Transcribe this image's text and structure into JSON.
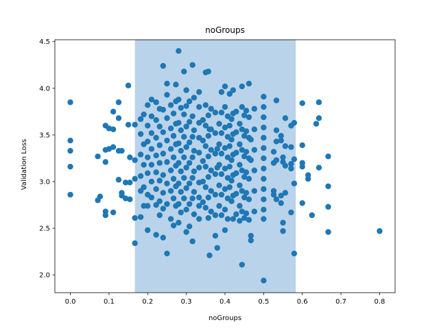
{
  "chart_data": {
    "type": "scatter",
    "title": "noGroups",
    "xlabel": "noGroups",
    "ylabel": "Validation Loss",
    "xlim": [
      -0.04,
      0.84
    ],
    "ylim": [
      1.81,
      4.52
    ],
    "xticks": [
      0.0,
      0.1,
      0.2,
      0.3,
      0.4,
      0.5,
      0.6,
      0.7,
      0.8
    ],
    "xtick_labels": [
      "0.0",
      "0.1",
      "0.2",
      "0.3",
      "0.4",
      "0.5",
      "0.6",
      "0.7",
      "0.8"
    ],
    "yticks": [
      2.0,
      2.5,
      3.0,
      3.5,
      4.0,
      4.5
    ],
    "ytick_labels": [
      "2.0",
      "2.5",
      "3.0",
      "3.5",
      "4.0",
      "4.5"
    ],
    "grid": false,
    "highlight_band": {
      "x_start": 0.167,
      "x_end": 0.583,
      "color": "#b9d3ea"
    },
    "marker_color": "#1f77b4",
    "points": [
      [
        0.0,
        3.85
      ],
      [
        0.0,
        3.44
      ],
      [
        0.0,
        3.33
      ],
      [
        0.0,
        3.16
      ],
      [
        0.0,
        2.86
      ],
      [
        0.071,
        3.27
      ],
      [
        0.071,
        2.8
      ],
      [
        0.077,
        2.84
      ],
      [
        0.091,
        3.6
      ],
      [
        0.091,
        3.34
      ],
      [
        0.091,
        3.21
      ],
      [
        0.091,
        2.68
      ],
      [
        0.091,
        2.64
      ],
      [
        0.1,
        3.57
      ],
      [
        0.1,
        3.35
      ],
      [
        0.111,
        3.75
      ],
      [
        0.111,
        3.56
      ],
      [
        0.111,
        3.37
      ],
      [
        0.111,
        2.67
      ],
      [
        0.125,
        3.85
      ],
      [
        0.125,
        3.68
      ],
      [
        0.125,
        3.33
      ],
      [
        0.125,
        3.02
      ],
      [
        0.133,
        3.33
      ],
      [
        0.133,
        2.88
      ],
      [
        0.133,
        2.85
      ],
      [
        0.143,
        2.99
      ],
      [
        0.143,
        2.82
      ],
      [
        0.15,
        4.03
      ],
      [
        0.15,
        3.61
      ],
      [
        0.154,
        3.26
      ],
      [
        0.154,
        2.99
      ],
      [
        0.154,
        2.81
      ],
      [
        0.167,
        3.61
      ],
      [
        0.167,
        3.23
      ],
      [
        0.167,
        3.03
      ],
      [
        0.167,
        2.61
      ],
      [
        0.167,
        2.34
      ],
      [
        0.182,
        3.67
      ],
      [
        0.182,
        3.51
      ],
      [
        0.182,
        3.29
      ],
      [
        0.182,
        3.06
      ],
      [
        0.182,
        2.9
      ],
      [
        0.182,
        2.62
      ],
      [
        0.19,
        3.72
      ],
      [
        0.19,
        3.4
      ],
      [
        0.19,
        3.18
      ],
      [
        0.19,
        2.94
      ],
      [
        0.19,
        2.74
      ],
      [
        0.2,
        3.82
      ],
      [
        0.2,
        3.6
      ],
      [
        0.2,
        3.43
      ],
      [
        0.2,
        3.26
      ],
      [
        0.2,
        3.09
      ],
      [
        0.2,
        2.86
      ],
      [
        0.2,
        2.74
      ],
      [
        0.2,
        2.48
      ],
      [
        0.21,
        3.88
      ],
      [
        0.21,
        3.7
      ],
      [
        0.21,
        3.52
      ],
      [
        0.21,
        3.35
      ],
      [
        0.21,
        3.18
      ],
      [
        0.21,
        3.0
      ],
      [
        0.21,
        2.83
      ],
      [
        0.222,
        3.85
      ],
      [
        0.222,
        3.66
      ],
      [
        0.222,
        3.47
      ],
      [
        0.222,
        3.28
      ],
      [
        0.222,
        3.1
      ],
      [
        0.222,
        2.92
      ],
      [
        0.222,
        2.75
      ],
      [
        0.222,
        2.43
      ],
      [
        0.231,
        3.78
      ],
      [
        0.231,
        3.59
      ],
      [
        0.231,
        3.39
      ],
      [
        0.231,
        3.2
      ],
      [
        0.231,
        3.01
      ],
      [
        0.231,
        2.79
      ],
      [
        0.231,
        2.64
      ],
      [
        0.24,
        4.24
      ],
      [
        0.24,
        3.77
      ],
      [
        0.24,
        3.53
      ],
      [
        0.24,
        3.3
      ],
      [
        0.24,
        3.07
      ],
      [
        0.24,
        2.88
      ],
      [
        0.24,
        2.71
      ],
      [
        0.24,
        2.4
      ],
      [
        0.25,
        4.05
      ],
      [
        0.25,
        3.93
      ],
      [
        0.25,
        3.68
      ],
      [
        0.25,
        3.44
      ],
      [
        0.25,
        3.21
      ],
      [
        0.25,
        2.98
      ],
      [
        0.25,
        2.76
      ],
      [
        0.25,
        2.23
      ],
      [
        0.26,
        3.82
      ],
      [
        0.26,
        3.57
      ],
      [
        0.26,
        3.35
      ],
      [
        0.26,
        3.12
      ],
      [
        0.26,
        2.9
      ],
      [
        0.26,
        2.6
      ],
      [
        0.267,
        3.73
      ],
      [
        0.267,
        3.49
      ],
      [
        0.267,
        3.26
      ],
      [
        0.267,
        3.03
      ],
      [
        0.267,
        2.82
      ],
      [
        0.267,
        2.53
      ],
      [
        0.273,
        4.04
      ],
      [
        0.273,
        3.86
      ],
      [
        0.273,
        3.62
      ],
      [
        0.273,
        3.4
      ],
      [
        0.273,
        3.17
      ],
      [
        0.273,
        2.95
      ],
      [
        0.273,
        2.74
      ],
      [
        0.28,
        4.4
      ],
      [
        0.28,
        3.88
      ],
      [
        0.28,
        3.63
      ],
      [
        0.28,
        3.41
      ],
      [
        0.28,
        3.2
      ],
      [
        0.28,
        2.98
      ],
      [
        0.28,
        2.76
      ],
      [
        0.28,
        2.56
      ],
      [
        0.286,
        3.79
      ],
      [
        0.286,
        3.55
      ],
      [
        0.286,
        3.33
      ],
      [
        0.286,
        3.11
      ],
      [
        0.286,
        2.89
      ],
      [
        0.286,
        2.67
      ],
      [
        0.294,
        4.18
      ],
      [
        0.294,
        3.72
      ],
      [
        0.294,
        3.48
      ],
      [
        0.294,
        3.26
      ],
      [
        0.294,
        3.04
      ],
      [
        0.294,
        2.82
      ],
      [
        0.3,
        3.98
      ],
      [
        0.3,
        3.81
      ],
      [
        0.3,
        3.59
      ],
      [
        0.3,
        3.37
      ],
      [
        0.3,
        3.15
      ],
      [
        0.3,
        2.93
      ],
      [
        0.3,
        2.7
      ],
      [
        0.3,
        2.46
      ],
      [
        0.308,
        3.86
      ],
      [
        0.308,
        3.64
      ],
      [
        0.308,
        3.42
      ],
      [
        0.308,
        3.2
      ],
      [
        0.308,
        2.98
      ],
      [
        0.308,
        2.76
      ],
      [
        0.308,
        2.52
      ],
      [
        0.316,
        4.25
      ],
      [
        0.316,
        3.7
      ],
      [
        0.316,
        3.48
      ],
      [
        0.316,
        3.26
      ],
      [
        0.316,
        3.04
      ],
      [
        0.316,
        2.82
      ],
      [
        0.316,
        2.36
      ],
      [
        0.32,
        3.9
      ],
      [
        0.32,
        3.55
      ],
      [
        0.32,
        3.33
      ],
      [
        0.32,
        3.11
      ],
      [
        0.32,
        2.89
      ],
      [
        0.32,
        2.65
      ],
      [
        0.333,
        3.96
      ],
      [
        0.333,
        3.8
      ],
      [
        0.333,
        3.63
      ],
      [
        0.333,
        3.47
      ],
      [
        0.333,
        3.31
      ],
      [
        0.333,
        3.15
      ],
      [
        0.333,
        2.99
      ],
      [
        0.333,
        2.83
      ],
      [
        0.333,
        2.74
      ],
      [
        0.333,
        2.6
      ],
      [
        0.343,
        3.66
      ],
      [
        0.343,
        3.44
      ],
      [
        0.343,
        3.22
      ],
      [
        0.343,
        3.0
      ],
      [
        0.343,
        2.78
      ],
      [
        0.35,
        4.17
      ],
      [
        0.35,
        3.82
      ],
      [
        0.35,
        3.6
      ],
      [
        0.35,
        3.38
      ],
      [
        0.35,
        3.16
      ],
      [
        0.35,
        2.94
      ],
      [
        0.35,
        2.72
      ],
      [
        0.357,
        4.18
      ],
      [
        0.357,
        3.71
      ],
      [
        0.357,
        3.49
      ],
      [
        0.357,
        3.27
      ],
      [
        0.357,
        3.05
      ],
      [
        0.357,
        2.83
      ],
      [
        0.357,
        2.61
      ],
      [
        0.36,
        3.56
      ],
      [
        0.36,
        2.21
      ],
      [
        0.364,
        3.78
      ],
      [
        0.364,
        3.56
      ],
      [
        0.364,
        3.34
      ],
      [
        0.364,
        3.12
      ],
      [
        0.364,
        2.9
      ],
      [
        0.364,
        2.68
      ],
      [
        0.375,
        3.74
      ],
      [
        0.375,
        3.52
      ],
      [
        0.375,
        3.3
      ],
      [
        0.375,
        3.08
      ],
      [
        0.375,
        2.86
      ],
      [
        0.375,
        2.64
      ],
      [
        0.375,
        2.42
      ],
      [
        0.38,
        3.35
      ],
      [
        0.38,
        3.15
      ],
      [
        0.38,
        2.29
      ],
      [
        0.385,
        3.62
      ],
      [
        0.385,
        3.4
      ],
      [
        0.385,
        3.18
      ],
      [
        0.385,
        2.96
      ],
      [
        0.385,
        2.74
      ],
      [
        0.391,
        3.96
      ],
      [
        0.391,
        3.74
      ],
      [
        0.391,
        3.52
      ],
      [
        0.391,
        3.3
      ],
      [
        0.391,
        3.08
      ],
      [
        0.391,
        2.86
      ],
      [
        0.391,
        2.64
      ],
      [
        0.4,
        4.02
      ],
      [
        0.4,
        3.8
      ],
      [
        0.4,
        3.58
      ],
      [
        0.4,
        3.36
      ],
      [
        0.4,
        3.14
      ],
      [
        0.4,
        2.92
      ],
      [
        0.4,
        2.7
      ],
      [
        0.4,
        2.48
      ],
      [
        0.407,
        3.7
      ],
      [
        0.407,
        3.48
      ],
      [
        0.407,
        3.26
      ],
      [
        0.407,
        3.04
      ],
      [
        0.407,
        2.82
      ],
      [
        0.407,
        2.6
      ],
      [
        0.412,
        3.94
      ],
      [
        0.412,
        3.6
      ],
      [
        0.412,
        3.38
      ],
      [
        0.412,
        3.16
      ],
      [
        0.412,
        2.94
      ],
      [
        0.417,
        3.67
      ],
      [
        0.417,
        3.45
      ],
      [
        0.417,
        3.23
      ],
      [
        0.417,
        3.01
      ],
      [
        0.417,
        2.79
      ],
      [
        0.421,
        3.98
      ],
      [
        0.421,
        3.73
      ],
      [
        0.421,
        3.51
      ],
      [
        0.421,
        3.29
      ],
      [
        0.421,
        3.07
      ],
      [
        0.421,
        2.85
      ],
      [
        0.421,
        2.6
      ],
      [
        0.429,
        3.75
      ],
      [
        0.429,
        3.53
      ],
      [
        0.429,
        3.31
      ],
      [
        0.429,
        3.09
      ],
      [
        0.429,
        2.87
      ],
      [
        0.429,
        2.65
      ],
      [
        0.438,
        3.62
      ],
      [
        0.438,
        3.4
      ],
      [
        0.438,
        3.18
      ],
      [
        0.438,
        2.96
      ],
      [
        0.438,
        2.74
      ],
      [
        0.438,
        2.58
      ],
      [
        0.444,
        4.02
      ],
      [
        0.444,
        3.8
      ],
      [
        0.444,
        3.56
      ],
      [
        0.444,
        3.34
      ],
      [
        0.444,
        3.12
      ],
      [
        0.444,
        2.9
      ],
      [
        0.444,
        2.68
      ],
      [
        0.444,
        2.11
      ],
      [
        0.45,
        3.71
      ],
      [
        0.45,
        3.49
      ],
      [
        0.45,
        3.27
      ],
      [
        0.45,
        3.05
      ],
      [
        0.45,
        2.83
      ],
      [
        0.45,
        2.61
      ],
      [
        0.455,
        3.76
      ],
      [
        0.455,
        3.54
      ],
      [
        0.455,
        3.32
      ],
      [
        0.455,
        3.1
      ],
      [
        0.455,
        2.88
      ],
      [
        0.455,
        2.66
      ],
      [
        0.462,
        4.05
      ],
      [
        0.462,
        3.69
      ],
      [
        0.462,
        3.47
      ],
      [
        0.462,
        3.25
      ],
      [
        0.462,
        3.03
      ],
      [
        0.462,
        2.81
      ],
      [
        0.462,
        2.59
      ],
      [
        0.467,
        3.45
      ],
      [
        0.467,
        3.23
      ],
      [
        0.467,
        2.42
      ],
      [
        0.467,
        2.37
      ],
      [
        0.476,
        3.78
      ],
      [
        0.476,
        3.56
      ],
      [
        0.476,
        3.34
      ],
      [
        0.476,
        3.12
      ],
      [
        0.476,
        2.9
      ],
      [
        0.476,
        2.68
      ],
      [
        0.5,
        3.91
      ],
      [
        0.5,
        3.8
      ],
      [
        0.5,
        3.69
      ],
      [
        0.5,
        3.58
      ],
      [
        0.5,
        3.47
      ],
      [
        0.5,
        3.36
      ],
      [
        0.5,
        3.25
      ],
      [
        0.5,
        3.14
      ],
      [
        0.5,
        3.03
      ],
      [
        0.5,
        2.92
      ],
      [
        0.5,
        2.81
      ],
      [
        0.5,
        2.7
      ],
      [
        0.5,
        2.6
      ],
      [
        0.5,
        1.94
      ],
      [
        0.526,
        3.32
      ],
      [
        0.526,
        3.2
      ],
      [
        0.526,
        2.9
      ],
      [
        0.526,
        2.86
      ],
      [
        0.533,
        3.87
      ],
      [
        0.533,
        3.55
      ],
      [
        0.533,
        3.43
      ],
      [
        0.533,
        3.23
      ],
      [
        0.533,
        2.81
      ],
      [
        0.545,
        3.49
      ],
      [
        0.545,
        3.44
      ],
      [
        0.545,
        2.85
      ],
      [
        0.545,
        2.77
      ],
      [
        0.55,
        3.26
      ],
      [
        0.55,
        3.21
      ],
      [
        0.55,
        2.56
      ],
      [
        0.55,
        2.47
      ],
      [
        0.556,
        3.68
      ],
      [
        0.556,
        3.38
      ],
      [
        0.556,
        3.17
      ],
      [
        0.556,
        2.88
      ],
      [
        0.571,
        3.6
      ],
      [
        0.571,
        3.37
      ],
      [
        0.571,
        3.19
      ],
      [
        0.571,
        3.14
      ],
      [
        0.571,
        2.67
      ],
      [
        0.579,
        3.63
      ],
      [
        0.579,
        3.24
      ],
      [
        0.579,
        2.98
      ],
      [
        0.579,
        2.23
      ],
      [
        0.6,
        3.84
      ],
      [
        0.6,
        3.39
      ],
      [
        0.6,
        3.2
      ],
      [
        0.6,
        3.16
      ],
      [
        0.6,
        2.77
      ],
      [
        0.615,
        3.07
      ],
      [
        0.615,
        3.03
      ],
      [
        0.625,
        2.64
      ],
      [
        0.636,
        3.62
      ],
      [
        0.643,
        3.85
      ],
      [
        0.643,
        3.68
      ],
      [
        0.643,
        3.15
      ],
      [
        0.667,
        3.27
      ],
      [
        0.667,
        2.95
      ],
      [
        0.667,
        2.73
      ],
      [
        0.667,
        2.46
      ],
      [
        0.8,
        2.47
      ]
    ]
  }
}
